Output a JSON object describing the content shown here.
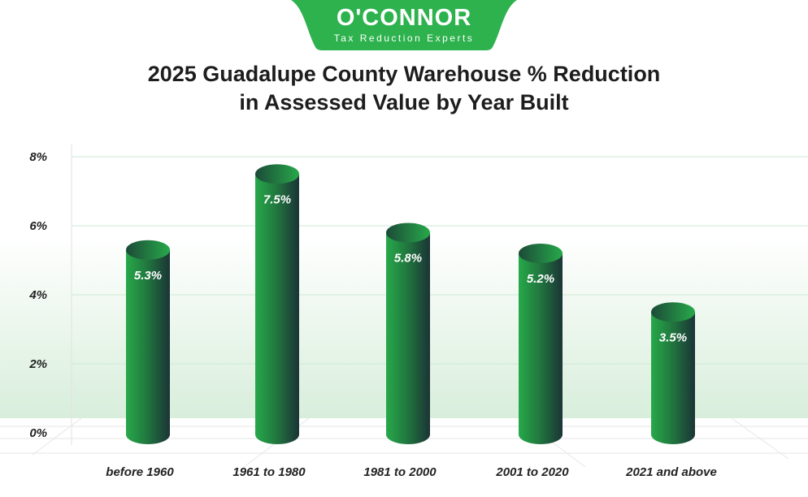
{
  "logo": {
    "name": "O'CONNOR",
    "tagline": "Tax Reduction Experts"
  },
  "chart_data": {
    "type": "bar",
    "title_line1": "2025 Guadalupe County Warehouse % Reduction",
    "title_line2": "in Assessed Value by Year Built",
    "categories": [
      "before 1960",
      "1961 to 1980",
      "1981 to 2000",
      "2001 to 2020",
      "2021 and above"
    ],
    "values": [
      5.3,
      7.5,
      5.8,
      5.2,
      3.5
    ],
    "data_labels": [
      "5.3%",
      "7.5%",
      "5.8%",
      "5.2%",
      "3.5%"
    ],
    "yticks": [
      0,
      2,
      4,
      6,
      8
    ],
    "ytick_labels": [
      "0%",
      "2%",
      "4%",
      "6%",
      "8%"
    ],
    "ylim": [
      0,
      8
    ],
    "grid": true,
    "colors": {
      "bar_light": "#27a94a",
      "bar_dark": "#1b3436",
      "brand": "#2db24d",
      "grid": "#cfe8d4"
    }
  }
}
